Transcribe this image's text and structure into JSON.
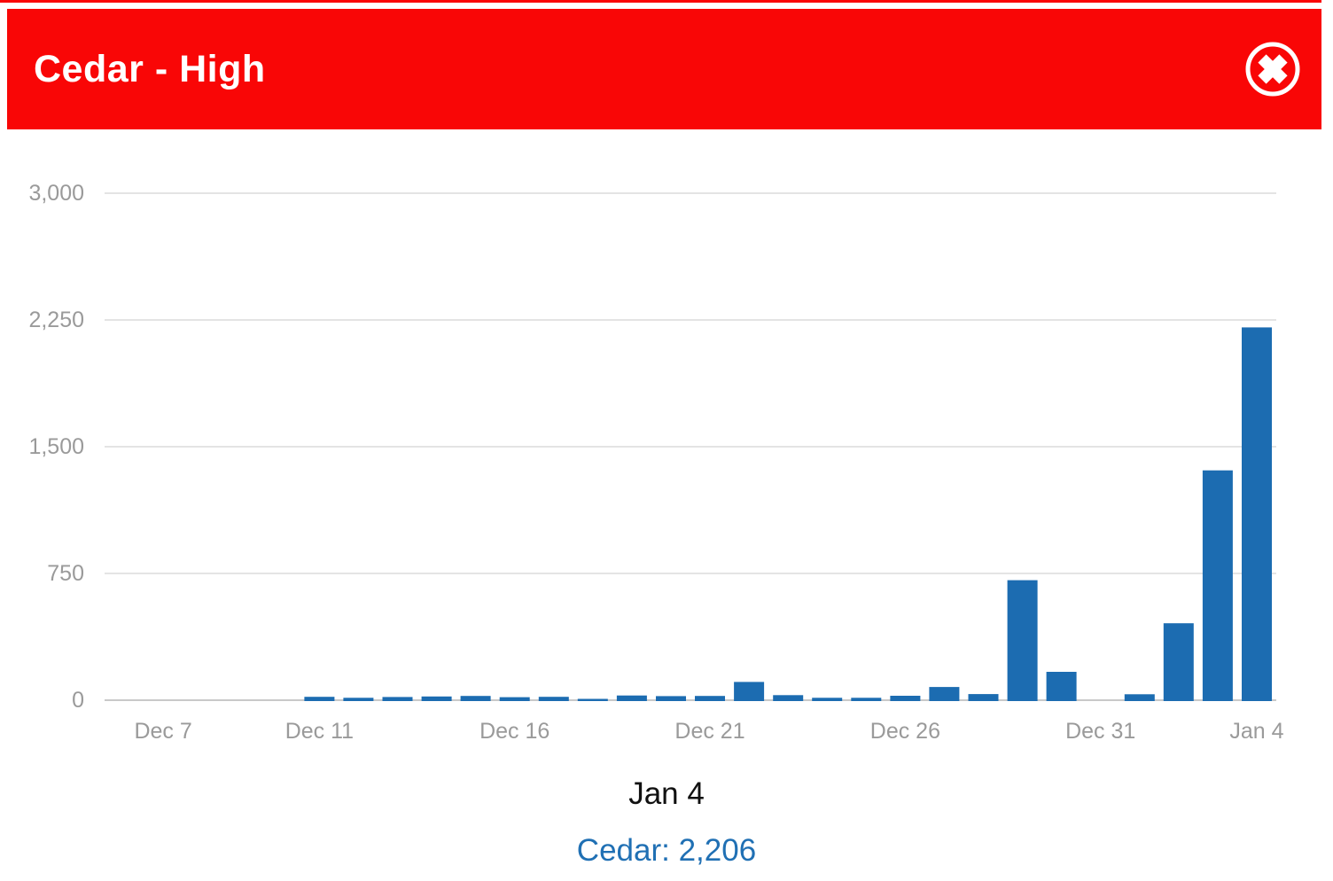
{
  "header": {
    "title": "Cedar - High",
    "close_icon": "circle-x"
  },
  "chart_data": {
    "type": "bar",
    "title": "Cedar - High",
    "xlabel": "",
    "ylabel": "",
    "categories": [
      "Dec 6",
      "Dec 7",
      "Dec 8",
      "Dec 9",
      "Dec 10",
      "Dec 11",
      "Dec 12",
      "Dec 13",
      "Dec 14",
      "Dec 15",
      "Dec 16",
      "Dec 17",
      "Dec 18",
      "Dec 19",
      "Dec 20",
      "Dec 21",
      "Dec 22",
      "Dec 23",
      "Dec 24",
      "Dec 25",
      "Dec 26",
      "Dec 27",
      "Dec 28",
      "Dec 29",
      "Dec 30",
      "Dec 31",
      "Jan 1",
      "Jan 2",
      "Jan 3",
      "Jan 4"
    ],
    "series": [
      {
        "name": "Cedar",
        "values": [
          0,
          0,
          0,
          0,
          0,
          20,
          14,
          19,
          22,
          25,
          18,
          20,
          8,
          28,
          24,
          25,
          108,
          30,
          14,
          14,
          26,
          78,
          36,
          710,
          168,
          0,
          35,
          455,
          1360,
          2206
        ]
      }
    ],
    "ylim": [
      0,
      3000
    ],
    "yticks": [
      {
        "value": 0,
        "label": "0"
      },
      {
        "value": 750,
        "label": "750"
      },
      {
        "value": 1500,
        "label": "1,500"
      },
      {
        "value": 2250,
        "label": "2,250"
      },
      {
        "value": 3000,
        "label": "3,000"
      }
    ],
    "xticks": [
      {
        "index": 1,
        "label": "Dec 7"
      },
      {
        "index": 5,
        "label": "Dec 11"
      },
      {
        "index": 10,
        "label": "Dec 16"
      },
      {
        "index": 15,
        "label": "Dec 21"
      },
      {
        "index": 20,
        "label": "Dec 26"
      },
      {
        "index": 25,
        "label": "Dec 31"
      },
      {
        "index": 29,
        "label": "Jan 4"
      }
    ],
    "grid": true,
    "legend": "none",
    "bar_color": "#1c6cb1",
    "gridline_color": "#d4d4d4",
    "baseline_color": "#c9c9c9",
    "axis_label_color": "#9a9a9a"
  },
  "tooltip": {
    "date": "Jan 4",
    "series_label": "Cedar:",
    "value": "2,206",
    "text_color": "#2070b4"
  },
  "theme": {
    "header_bg": "#f90606",
    "header_text": "#ffffff"
  }
}
